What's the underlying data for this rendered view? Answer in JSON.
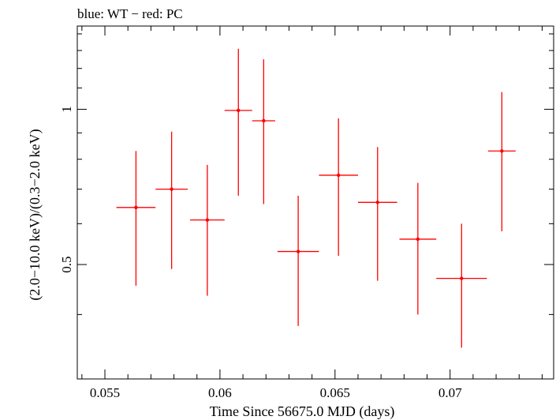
{
  "chart_data": {
    "type": "scatter",
    "title": "blue: WT − red: PC",
    "xlabel": "Time Since 56675.0 MJD (days)",
    "ylabel": "(2.0−10.0 keV)/(0.3−2.0 keV)",
    "xlim": [
      0.0538,
      0.0745
    ],
    "ylim": [
      0.3,
      1.45
    ],
    "y_scale": "log",
    "x_ticks": [
      {
        "value": 0.055,
        "label": "0.055"
      },
      {
        "value": 0.06,
        "label": "0.06"
      },
      {
        "value": 0.065,
        "label": "0.065"
      },
      {
        "value": 0.07,
        "label": "0.07"
      }
    ],
    "y_ticks": [
      {
        "value": 0.5,
        "label": "0.5"
      },
      {
        "value": 1.0,
        "label": "1"
      }
    ],
    "series": [
      {
        "name": "PC",
        "color": "#ff0000",
        "points": [
          {
            "x": 0.05635,
            "xerr": 0.00085,
            "y": 0.645,
            "ylo": 0.455,
            "yhi": 0.83
          },
          {
            "x": 0.0579,
            "xerr": 0.0007,
            "y": 0.7,
            "ylo": 0.49,
            "yhi": 0.905
          },
          {
            "x": 0.05945,
            "xerr": 0.00075,
            "y": 0.61,
            "ylo": 0.435,
            "yhi": 0.78
          },
          {
            "x": 0.0608,
            "xerr": 0.0006,
            "y": 0.995,
            "ylo": 0.68,
            "yhi": 1.31
          },
          {
            "x": 0.0619,
            "xerr": 0.0005,
            "y": 0.95,
            "ylo": 0.655,
            "yhi": 1.25
          },
          {
            "x": 0.0634,
            "xerr": 0.0009,
            "y": 0.53,
            "ylo": 0.38,
            "yhi": 0.68
          },
          {
            "x": 0.06515,
            "xerr": 0.00085,
            "y": 0.745,
            "ylo": 0.52,
            "yhi": 0.96
          },
          {
            "x": 0.06685,
            "xerr": 0.00085,
            "y": 0.66,
            "ylo": 0.465,
            "yhi": 0.845
          },
          {
            "x": 0.0686,
            "xerr": 0.0008,
            "y": 0.56,
            "ylo": 0.4,
            "yhi": 0.72
          },
          {
            "x": 0.0705,
            "xerr": 0.0011,
            "y": 0.47,
            "ylo": 0.345,
            "yhi": 0.6
          },
          {
            "x": 0.07225,
            "xerr": 0.0006,
            "y": 0.83,
            "ylo": 0.58,
            "yhi": 1.08
          }
        ]
      }
    ]
  }
}
